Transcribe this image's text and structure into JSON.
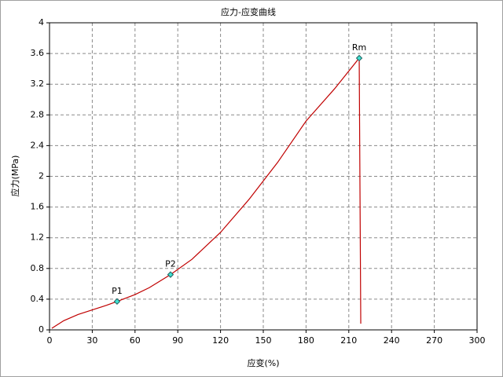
{
  "chart_data": {
    "type": "line",
    "title": "应力-应变曲线",
    "x_label": "应变(%)",
    "y_label": "应力(MPa)",
    "xlim": [
      0,
      300
    ],
    "ylim": [
      0,
      4
    ],
    "xticks": [
      0,
      30,
      60,
      90,
      120,
      150,
      180,
      210,
      240,
      270,
      300
    ],
    "yticks": [
      0,
      0.4,
      0.8,
      1.2,
      1.6,
      2,
      2.4,
      2.8,
      3.2,
      3.6,
      4
    ],
    "grid": true,
    "series": [
      {
        "color": "#c00000",
        "x": [
          1.6,
          10,
          20,
          30,
          40,
          47.4,
          60,
          70,
          84.9,
          100,
          120,
          140,
          160,
          180,
          200,
          217.3,
          218.4
        ],
        "values": [
          0.02,
          0.12,
          0.2,
          0.26,
          0.32,
          0.37,
          0.46,
          0.55,
          0.72,
          0.92,
          1.27,
          1.7,
          2.18,
          2.72,
          3.14,
          3.54,
          0.08
        ]
      }
    ],
    "markers": [
      {
        "label": "P1",
        "x": 47.4,
        "y": 0.37
      },
      {
        "label": "P2",
        "x": 84.9,
        "y": 0.72
      },
      {
        "label": "Rm",
        "x": 217.3,
        "y": 3.54
      }
    ],
    "marker_color": "#40e0d0"
  }
}
